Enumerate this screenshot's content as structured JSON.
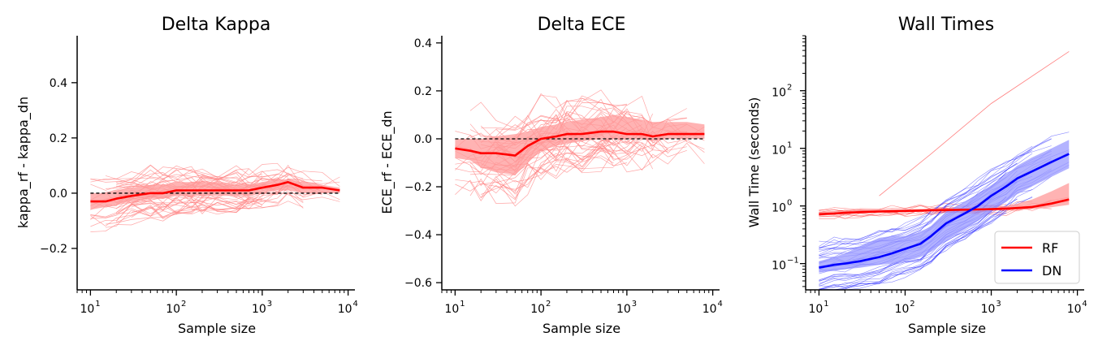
{
  "chart_data": [
    {
      "type": "line",
      "title": "Delta Kappa",
      "xlabel": "Sample size",
      "ylabel": "kappa_rf - kappa_dn",
      "xscale": "log",
      "xlim": [
        7,
        12000
      ],
      "ylim": [
        -0.35,
        0.57
      ],
      "yticks": [
        -0.2,
        0.0,
        0.2,
        0.4
      ],
      "ytick_labels": [
        "−0.2",
        "0.0",
        "0.2",
        "0.4"
      ],
      "xticks": [
        10,
        100,
        1000,
        10000
      ],
      "xtick_bases": [
        "10",
        "10",
        "10",
        "10"
      ],
      "xtick_exps": [
        "1",
        "2",
        "3",
        "4"
      ],
      "reference_line": 0,
      "mean_color": "#ff0000",
      "band_color": "#ff9999",
      "individual_color": "#ff8080",
      "x": [
        10,
        15,
        20,
        30,
        50,
        70,
        100,
        150,
        200,
        300,
        500,
        700,
        1000,
        1500,
        2000,
        3000,
        5000,
        8000
      ],
      "series": [
        {
          "values": [
            -0.03,
            -0.03,
            -0.02,
            -0.01,
            0.0,
            0.0,
            0.01,
            0.01,
            0.01,
            0.01,
            0.01,
            0.01,
            0.02,
            0.03,
            0.04,
            0.02,
            0.02,
            0.01
          ]
        }
      ],
      "band": {
        "lower": [
          -0.06,
          -0.05,
          -0.04,
          -0.03,
          -0.02,
          -0.02,
          -0.01,
          -0.01,
          -0.01,
          -0.01,
          -0.01,
          -0.01,
          0.0,
          0.01,
          0.01,
          0.0,
          0.0,
          0.0
        ],
        "upper": [
          0.0,
          0.0,
          0.01,
          0.02,
          0.03,
          0.03,
          0.04,
          0.04,
          0.04,
          0.04,
          0.03,
          0.03,
          0.04,
          0.05,
          0.05,
          0.04,
          0.03,
          0.02
        ]
      }
    },
    {
      "type": "line",
      "title": "Delta ECE",
      "xlabel": "Sample size",
      "ylabel": "ECE_rf - ECE_dn",
      "xscale": "log",
      "xlim": [
        7,
        12000
      ],
      "ylim": [
        -0.63,
        0.43
      ],
      "yticks": [
        -0.6,
        -0.4,
        -0.2,
        0.0,
        0.2,
        0.4
      ],
      "ytick_labels": [
        "−0.6",
        "−0.4",
        "−0.2",
        "0.0",
        "0.2",
        "0.4"
      ],
      "xticks": [
        10,
        100,
        1000,
        10000
      ],
      "xtick_bases": [
        "10",
        "10",
        "10",
        "10"
      ],
      "xtick_exps": [
        "1",
        "2",
        "3",
        "4"
      ],
      "reference_line": 0,
      "mean_color": "#ff0000",
      "band_color": "#ff9999",
      "individual_color": "#ff8080",
      "x": [
        10,
        15,
        20,
        30,
        50,
        70,
        100,
        150,
        200,
        300,
        500,
        700,
        1000,
        1500,
        2000,
        3000,
        5000,
        8000
      ],
      "series": [
        {
          "values": [
            -0.04,
            -0.05,
            -0.06,
            -0.06,
            -0.07,
            -0.03,
            0.0,
            0.01,
            0.02,
            0.02,
            0.03,
            0.03,
            0.02,
            0.02,
            0.01,
            0.02,
            0.02,
            0.02
          ]
        }
      ],
      "band": {
        "lower": [
          -0.08,
          -0.09,
          -0.12,
          -0.14,
          -0.15,
          -0.1,
          -0.05,
          -0.03,
          -0.02,
          -0.01,
          0.0,
          0.0,
          0.0,
          0.0,
          -0.01,
          0.0,
          0.0,
          0.0
        ],
        "upper": [
          0.0,
          0.0,
          0.0,
          0.01,
          0.02,
          0.03,
          0.05,
          0.06,
          0.07,
          0.08,
          0.09,
          0.1,
          0.09,
          0.08,
          0.07,
          0.07,
          0.07,
          0.06
        ]
      }
    },
    {
      "type": "line",
      "title": "Wall Times",
      "xlabel": "Sample size",
      "ylabel": "Wall Time (seconds)",
      "xscale": "log",
      "yscale": "log",
      "xlim": [
        7,
        12000
      ],
      "ylim": [
        0.035,
        900
      ],
      "yticks": [
        0.1,
        1,
        10,
        100
      ],
      "ytick_bases": [
        "10",
        "10",
        "10",
        "10"
      ],
      "ytick_exps": [
        "−1",
        "0",
        "1",
        "2"
      ],
      "xticks": [
        10,
        100,
        1000,
        10000
      ],
      "xtick_bases": [
        "10",
        "10",
        "10",
        "10"
      ],
      "xtick_exps": [
        "1",
        "2",
        "3",
        "4"
      ],
      "legend": {
        "position": "lower-right",
        "entries": [
          "RF",
          "DN"
        ]
      },
      "x": [
        10,
        15,
        20,
        30,
        50,
        70,
        100,
        150,
        200,
        300,
        500,
        700,
        1000,
        1500,
        2000,
        3000,
        5000,
        8000
      ],
      "series": [
        {
          "name": "RF",
          "color": "#ff0000",
          "values": [
            0.72,
            0.74,
            0.76,
            0.78,
            0.8,
            0.81,
            0.82,
            0.83,
            0.84,
            0.85,
            0.86,
            0.87,
            0.88,
            0.9,
            0.92,
            0.96,
            1.1,
            1.3
          ]
        },
        {
          "name": "DN",
          "color": "#0000ff",
          "values": [
            0.085,
            0.095,
            0.1,
            0.11,
            0.13,
            0.15,
            0.18,
            0.22,
            0.3,
            0.5,
            0.75,
            1.0,
            1.5,
            2.2,
            3.0,
            4.0,
            5.8,
            8.0
          ]
        }
      ],
      "bands": [
        {
          "color": "#ff9999",
          "lower": [
            0.68,
            0.7,
            0.72,
            0.74,
            0.76,
            0.77,
            0.78,
            0.79,
            0.8,
            0.81,
            0.82,
            0.83,
            0.84,
            0.85,
            0.86,
            0.88,
            0.95,
            1.05
          ],
          "upper": [
            0.78,
            0.8,
            0.82,
            0.84,
            0.86,
            0.87,
            0.88,
            0.89,
            0.9,
            0.91,
            0.92,
            0.93,
            0.95,
            1.0,
            1.1,
            1.3,
            1.8,
            2.5
          ]
        },
        {
          "color": "#9999ff",
          "lower": [
            0.07,
            0.075,
            0.08,
            0.085,
            0.095,
            0.1,
            0.11,
            0.13,
            0.16,
            0.25,
            0.4,
            0.55,
            0.8,
            1.2,
            1.6,
            2.2,
            3.2,
            4.5
          ],
          "upper": [
            0.11,
            0.13,
            0.15,
            0.2,
            0.28,
            0.3,
            0.3,
            0.35,
            0.45,
            0.8,
            1.2,
            1.6,
            2.3,
            3.5,
            5.0,
            7.0,
            10.0,
            14.0
          ]
        }
      ]
    }
  ]
}
